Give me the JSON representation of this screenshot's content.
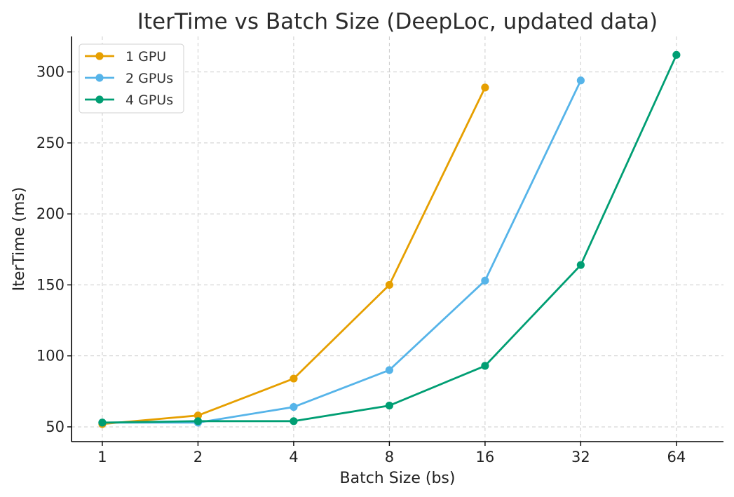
{
  "chart_data": {
    "type": "line",
    "title": "IterTime vs Batch Size (DeepLoc, updated data)",
    "xlabel": "Batch Size (bs)",
    "ylabel": "IterTime (ms)",
    "x_scale": "log2",
    "x_ticks": [
      1,
      2,
      4,
      8,
      16,
      32,
      64
    ],
    "x_tick_labels": [
      "1",
      "2",
      "4",
      "8",
      "16",
      "32",
      "64"
    ],
    "xlim": [
      0.8,
      90
    ],
    "y_ticks": [
      50,
      100,
      150,
      200,
      250,
      300
    ],
    "y_tick_labels": [
      "50",
      "100",
      "150",
      "200",
      "250",
      "300"
    ],
    "ylim": [
      39.6,
      325
    ],
    "grid": true,
    "legend_position": "top-left",
    "series": [
      {
        "name": "1 GPU",
        "color": "#E69F00",
        "x": [
          1,
          2,
          4,
          8,
          16
        ],
        "values": [
          52,
          58,
          84,
          150,
          289
        ]
      },
      {
        "name": "2 GPUs",
        "color": "#56B4E9",
        "x": [
          1,
          2,
          4,
          8,
          16,
          32
        ],
        "values": [
          53,
          53,
          64,
          90,
          153,
          294
        ]
      },
      {
        "name": "4 GPUs",
        "color": "#009E73",
        "x": [
          1,
          2,
          4,
          8,
          16,
          32,
          64
        ],
        "values": [
          53,
          54,
          54,
          65,
          93,
          164,
          312
        ]
      }
    ]
  }
}
